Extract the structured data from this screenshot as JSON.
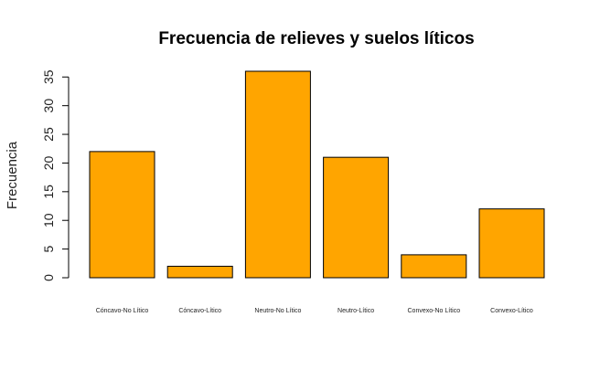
{
  "chart_data": {
    "type": "bar",
    "title": "Frecuencia de relieves y suelos líticos",
    "xlabel": "",
    "ylabel": "Frecuencia",
    "categories": [
      "Cóncavo-No Lítico",
      "Cóncavo-Lítico",
      "Neutro-No Lítico",
      "Neutro-Lítico",
      "Convexo-No Lítico",
      "Convexo-Lítico"
    ],
    "values": [
      22,
      2,
      36,
      21,
      4,
      12
    ],
    "yticks": [
      0,
      5,
      10,
      15,
      20,
      25,
      30,
      35
    ],
    "ylim": [
      0,
      36
    ],
    "bar_color": "#FFA500",
    "grid": false,
    "legend": "none"
  }
}
